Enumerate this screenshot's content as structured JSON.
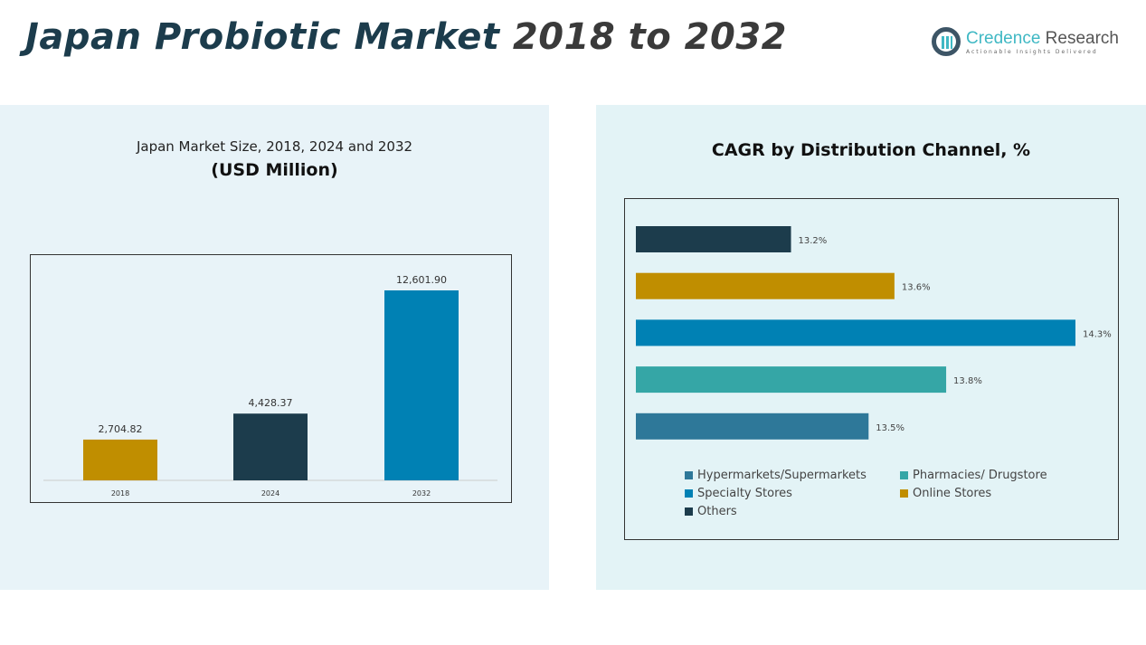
{
  "title": {
    "main": "Japan Probiotic Market",
    "years": "2018 to 2032"
  },
  "logo": {
    "name_a": "Credence",
    "name_b": "Research",
    "tagline": "Actionable Insights Delivered"
  },
  "chart_data": [
    {
      "type": "bar",
      "title": "Japan Market Size, 2018, 2024 and 2032",
      "subtitle": "(USD Million)",
      "categories": [
        "2018",
        "2024",
        "2032"
      ],
      "values": [
        2704.82,
        4428.37,
        12601.9
      ],
      "labels": [
        "2,704.82",
        "4,428.37",
        "12,601.90"
      ],
      "colors": [
        "#c08e00",
        "#1c3c4c",
        "#0081b4"
      ],
      "ylim": [
        0,
        12601.9
      ],
      "grid": false
    },
    {
      "type": "bar",
      "orientation": "horizontal",
      "title": "CAGR by Distribution Channel, %",
      "categories": [
        "Others",
        "Online Stores",
        "Specialty Stores",
        "Pharmacies/ Drugstore",
        "Hypermarkets/Supermarkets"
      ],
      "values": [
        13.2,
        13.6,
        14.3,
        13.8,
        13.5
      ],
      "labels": [
        "13.2%",
        "13.6%",
        "14.3%",
        "13.8%",
        "13.5%"
      ],
      "colors": [
        "#1c3c4c",
        "#c08e00",
        "#0081b4",
        "#35a6a6",
        "#2e7899"
      ],
      "xlim": [
        12.6,
        14.3
      ],
      "grid": false,
      "legend_position": "bottom",
      "legend": [
        {
          "label": "Hypermarkets/Supermarkets",
          "color": "#2e7899"
        },
        {
          "label": "Pharmacies/ Drugstore",
          "color": "#35a6a6"
        },
        {
          "label": "Specialty Stores",
          "color": "#0081b4"
        },
        {
          "label": "Online Stores",
          "color": "#c08e00"
        },
        {
          "label": "Others",
          "color": "#1c3c4c"
        }
      ]
    }
  ]
}
